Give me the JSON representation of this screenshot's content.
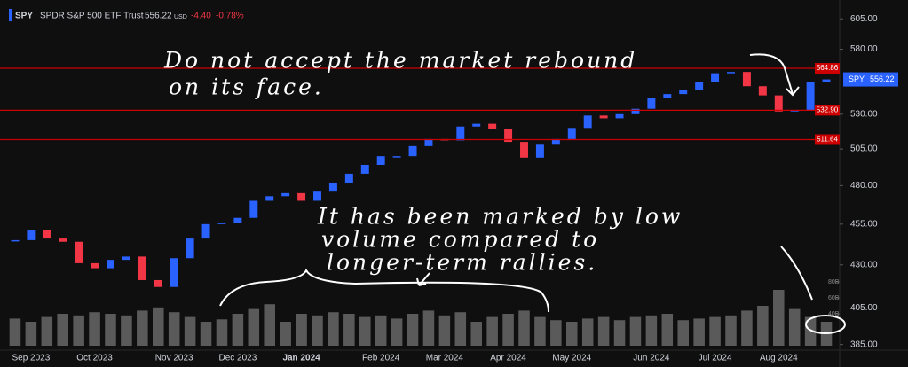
{
  "header": {
    "symbol": "SPY",
    "name": "SPDR S&P 500 ETF Trust",
    "currency": "USD",
    "change": "-4.40",
    "change_pct": "-0.78%"
  },
  "annotations": [
    "Do not accept the market rebound",
    "on its face.",
    "It has been marked by low",
    "volume compared to",
    "longer-term rallies."
  ],
  "chart_data": {
    "type": "candlestick",
    "log_scale": true,
    "categories": [
      null,
      "Sep 2023",
      null,
      null,
      null,
      "Oct 2023",
      null,
      null,
      null,
      null,
      "Nov 2023",
      null,
      null,
      null,
      "Dec 2023",
      null,
      null,
      null,
      "Jan 2024",
      null,
      null,
      null,
      null,
      "Feb 2024",
      null,
      null,
      null,
      "Mar 2024",
      null,
      null,
      null,
      "Apr 2024",
      null,
      null,
      null,
      "May 2024",
      null,
      null,
      null,
      null,
      "Jun 2024",
      null,
      null,
      null,
      "Jul 2024",
      null,
      null,
      null,
      "Aug 2024",
      null,
      null,
      null
    ],
    "series": [
      {
        "name": "SPY",
        "up_color": "#2962ff",
        "down_color": "#f23645",
        "values": [
          445,
          451,
          446,
          444,
          431,
          428,
          433,
          435,
          421,
          417,
          434,
          446,
          455,
          456,
          459,
          470,
          473,
          475,
          470,
          476,
          482,
          488,
          494,
          500,
          500,
          507,
          512,
          511,
          521,
          523,
          519,
          510,
          499,
          508,
          512,
          520,
          529,
          527,
          530,
          534,
          542,
          545,
          548,
          554,
          561,
          562,
          551,
          544,
          532,
          533,
          554,
          556.22
        ]
      }
    ],
    "ylim": [
      382,
      621
    ],
    "yticks": [
      {
        "value": 605,
        "label": "605.00"
      },
      {
        "value": 580,
        "label": "580.00"
      },
      {
        "value": 530,
        "label": "530.00"
      },
      {
        "value": 505,
        "label": "505.00"
      },
      {
        "value": 480,
        "label": "480.00"
      },
      {
        "value": 455,
        "label": "455.00"
      },
      {
        "value": 430,
        "label": "430.00"
      },
      {
        "value": 405,
        "label": "405.00"
      },
      {
        "value": 385,
        "label": "385.00"
      }
    ],
    "levels": [
      564.86,
      532.9,
      511.64
    ],
    "level_labels": [
      "564.86",
      "532.90",
      "511.64"
    ],
    "level_color": "#cc0000",
    "volume": {
      "color": "#5a5a5a",
      "ylim": [
        0,
        90
      ],
      "yticks": [
        {
          "value": 40,
          "label": "40B"
        },
        {
          "value": 60,
          "label": "60B"
        },
        {
          "value": 80,
          "label": "80B"
        }
      ],
      "values": [
        34,
        30,
        36,
        40,
        38,
        42,
        40,
        38,
        44,
        48,
        42,
        36,
        30,
        33,
        40,
        46,
        52,
        30,
        40,
        38,
        42,
        40,
        36,
        38,
        34,
        40,
        44,
        38,
        42,
        30,
        36,
        40,
        44,
        36,
        32,
        30,
        34,
        36,
        32,
        36,
        38,
        40,
        32,
        34,
        36,
        38,
        44,
        50,
        70,
        46,
        36,
        30
      ]
    }
  }
}
